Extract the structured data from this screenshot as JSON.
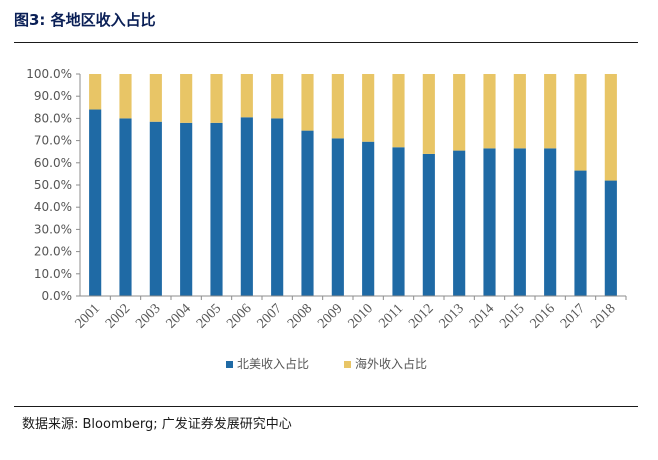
{
  "figure": {
    "title": "图3:  各地区收入占比",
    "source": "数据来源:  Bloomberg;  广发证券发展研究中心"
  },
  "colors": {
    "north_america": "#1f6aa5",
    "overseas": "#e8c566",
    "title": "#0a1f56"
  },
  "chart_data": {
    "type": "bar",
    "stacked": true,
    "title": "",
    "xlabel": "",
    "ylabel": "",
    "ylim": [
      0,
      100
    ],
    "yticks": [
      "0.0%",
      "10.0%",
      "20.0%",
      "30.0%",
      "40.0%",
      "50.0%",
      "60.0%",
      "70.0%",
      "80.0%",
      "90.0%",
      "100.0%"
    ],
    "grid": false,
    "legend_position": "bottom",
    "categories": [
      "2001",
      "2002",
      "2003",
      "2004",
      "2005",
      "2006",
      "2007",
      "2008",
      "2009",
      "2010",
      "2011",
      "2012",
      "2013",
      "2014",
      "2015",
      "2016",
      "2017",
      "2018"
    ],
    "series": [
      {
        "name": "北美收入占比",
        "color": "#1f6aa5",
        "values": [
          84.0,
          80.0,
          78.5,
          78.0,
          78.0,
          80.5,
          80.0,
          74.5,
          71.0,
          69.5,
          67.0,
          64.0,
          65.5,
          66.5,
          66.5,
          66.5,
          56.5,
          52.0
        ]
      },
      {
        "name": "海外收入占比",
        "color": "#e8c566",
        "values": [
          16.0,
          20.0,
          21.5,
          22.0,
          22.0,
          19.5,
          20.0,
          25.5,
          29.0,
          30.5,
          33.0,
          36.0,
          34.5,
          33.5,
          33.5,
          33.5,
          43.5,
          48.0
        ]
      }
    ]
  }
}
